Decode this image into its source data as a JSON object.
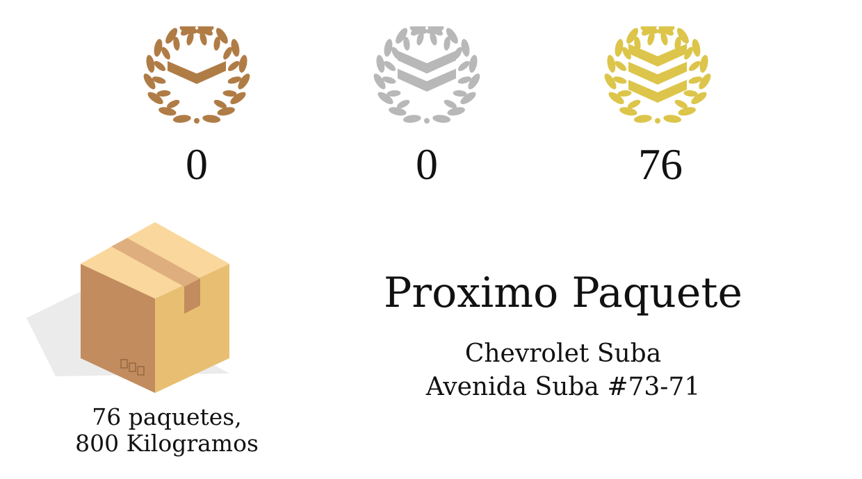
{
  "colors": {
    "bronze": "#B07C46",
    "silver": "#B8B8B8",
    "gold": "#DCC54A",
    "box_front": "#C28C5E",
    "box_side": "#E8BF72",
    "box_top": "#FAD79C",
    "tape": "#DFAE7E",
    "shadow": "#EBEBEB"
  },
  "badges": [
    {
      "tier": "bronze",
      "icon": "bronze-laurel-chevron-icon",
      "count": "0"
    },
    {
      "tier": "silver",
      "icon": "silver-laurel-double-chevron-icon",
      "count": "0"
    },
    {
      "tier": "gold",
      "icon": "gold-laurel-triple-chevron-icon",
      "count": "76"
    }
  ],
  "package": {
    "icon": "cardboard-box-icon",
    "summary_line1": "76 paquetes,",
    "summary_line2": "800 Kilogramos"
  },
  "next_package": {
    "title": "Proximo Paquete",
    "line1": "Chevrolet Suba",
    "line2": "Avenida Suba #73-71"
  }
}
